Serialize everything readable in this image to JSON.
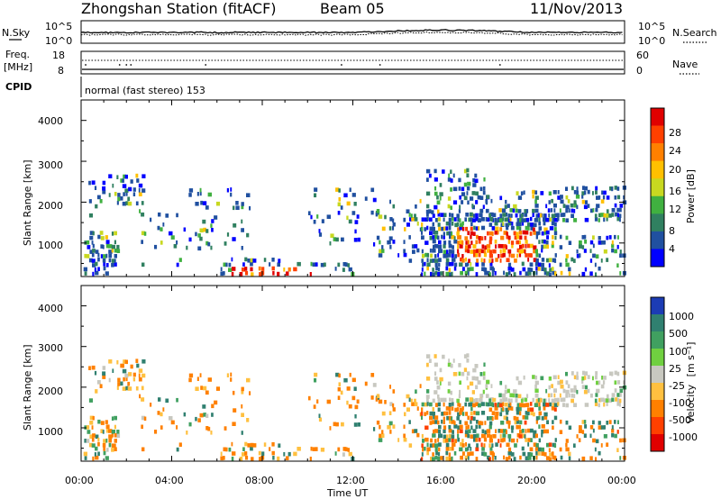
{
  "header": {
    "station": "Zhongshan Station (fitACF)",
    "beam": "Beam 05",
    "date": "11/Nov/2013"
  },
  "chart_data": [
    {
      "type": "line",
      "panel": "noise",
      "left_label": "N.Sky",
      "right_label": "N.Search",
      "left_ticks": [
        "10^5",
        "10^0"
      ],
      "right_ticks": [
        "10^5",
        "10^0"
      ],
      "scale": "log",
      "ylim": [
        1,
        100000
      ]
    },
    {
      "type": "line",
      "panel": "frequency",
      "left_label": "Freq.",
      "left_unit": "[MHz]",
      "right_label": "Nave",
      "left_ticks": [
        "18",
        "8"
      ],
      "right_ticks": [
        "60",
        "0"
      ],
      "ylim_left": [
        8,
        18
      ],
      "ylim_right": [
        0,
        60
      ]
    },
    {
      "type": "table",
      "panel": "cpid",
      "label": "CPID",
      "value": "normal (fast stereo) 153"
    },
    {
      "type": "heatmap",
      "panel": "power",
      "ylabel": "Slant Range [km]",
      "yticks": [
        "4000",
        "3000",
        "2000",
        "1000"
      ],
      "ylim": [
        180,
        4500
      ],
      "xlim": [
        0,
        24
      ],
      "colorbar": {
        "label": "Power [dB]",
        "ticks": [
          "28",
          "24",
          "20",
          "16",
          "12",
          "8",
          "4"
        ],
        "colors": [
          "#e00000",
          "#ff4000",
          "#ff8000",
          "#ffc000",
          "#c8d820",
          "#40b040",
          "#308060",
          "#2050a0",
          "#0000ff"
        ]
      }
    },
    {
      "type": "heatmap",
      "panel": "velocity",
      "ylabel": "Slant Range [km]",
      "yticks": [
        "4000",
        "3000",
        "2000",
        "1000"
      ],
      "ylim": [
        180,
        4500
      ],
      "xlim": [
        0,
        24
      ],
      "colorbar": {
        "label_main": "Velocity",
        "label_unit": "[m s⁻¹]",
        "ticks": [
          "1000",
          "500",
          "100",
          "25",
          "-25",
          "-100",
          "-500",
          "-1000"
        ],
        "colors": [
          "#1c3cb4",
          "#308070",
          "#40a060",
          "#70d040",
          "#c8c8c0",
          "#ffc040",
          "#ff8000",
          "#ff4000",
          "#e00000"
        ]
      }
    }
  ],
  "xaxis": {
    "ticks": [
      "00:00",
      "04:00",
      "08:00",
      "12:00",
      "16:00",
      "20:00",
      "00:00"
    ],
    "label": "Time UT"
  }
}
